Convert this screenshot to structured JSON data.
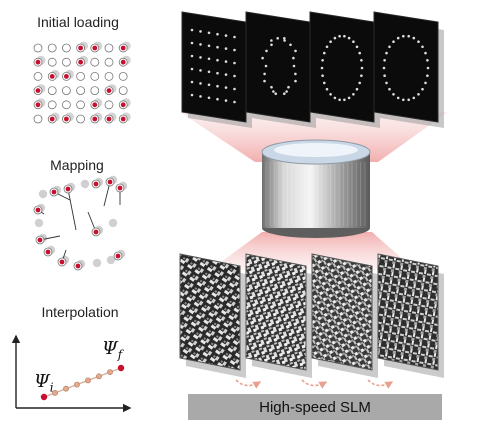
{
  "panels": {
    "initial_loading": "Initial loading",
    "mapping": "Mapping",
    "interpolation": "Interpolation"
  },
  "psi_initial": "Ψi",
  "psi_final": "Ψf",
  "slm_label": "High-speed SLM",
  "colors": {
    "red_dot": "#c8102e",
    "grey_dot": "#c8c8c8",
    "interp_dot": "#e3a98a",
    "slm_bar": "#a9a9a9",
    "objective_glow": "#f3b8b8"
  },
  "icons": {
    "objective": "microscope-objective-icon",
    "tweezer_frame": "tweezer-image-frame",
    "hologram": "hologram-phase-pattern"
  }
}
